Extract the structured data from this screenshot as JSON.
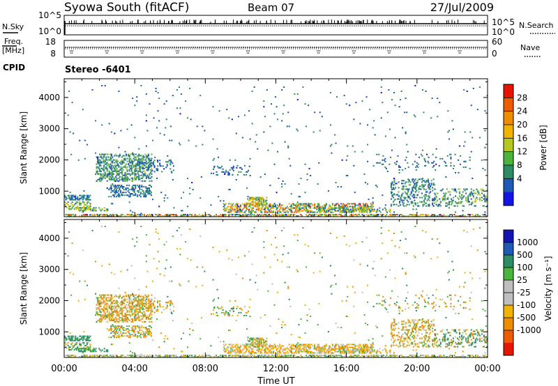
{
  "header": {
    "station": "Syowa South (fitACF)",
    "beam": "Beam 07",
    "date": "27/Jul/2009"
  },
  "top_panels": {
    "nsky_label": "N.Sky",
    "nsearch_label": "N.Search",
    "nsky_ticks": [
      "10^5",
      "10^0"
    ],
    "nsearch_ticks": [
      "10^5",
      "10^0"
    ],
    "freq_label_1": "Freq.",
    "freq_label_2": "[MHz]",
    "freq_ticks": [
      "18",
      "8"
    ],
    "nave_label": "Nave",
    "nave_ticks": [
      "60",
      "0"
    ],
    "cpid_label": "CPID",
    "cpid_value": "Stereo -6401"
  },
  "colors": {
    "power": [
      "#1414e6",
      "#1e5ab4",
      "#2d8c64",
      "#4bb43c",
      "#b4c81e",
      "#f0b400",
      "#f08c00",
      "#f05a00",
      "#e61400"
    ],
    "velocity": [
      "#e61400",
      "#f05a00",
      "#f08c00",
      "#f0b400",
      "#bebebe",
      "#bebebe",
      "#4bb43c",
      "#2d8c64",
      "#1e5ab4",
      "#1414b4"
    ]
  },
  "chart_data": [
    {
      "type": "heatmap",
      "name": "power",
      "ylabel": "Slant Range [km]",
      "xlabel": "",
      "y_ticks": [
        "1000",
        "2000",
        "3000",
        "4000"
      ],
      "x_range_hours": [
        0,
        24
      ],
      "y_range_km": [
        180,
        4600
      ],
      "colorbar_label": "Power [dB]",
      "colorbar_ticks": [
        "4",
        "8",
        "12",
        "16",
        "20",
        "24",
        "28"
      ],
      "colorbar_range": [
        0,
        30
      ]
    },
    {
      "type": "heatmap",
      "name": "velocity",
      "ylabel": "Slant Range [km]",
      "xlabel": "Time UT",
      "x_ticks": [
        "00:00",
        "04:00",
        "08:00",
        "12:00",
        "16:00",
        "20:00",
        "00:00"
      ],
      "y_ticks": [
        "1000",
        "2000",
        "3000",
        "4000"
      ],
      "x_range_hours": [
        0,
        24
      ],
      "y_range_km": [
        180,
        4600
      ],
      "colorbar_label": "Velocity [m s⁻¹]",
      "colorbar_ticks": [
        "1000",
        "500",
        "100",
        "25",
        "-25",
        "-100",
        "-500",
        "-1000"
      ]
    }
  ],
  "echo_regions": [
    {
      "t": [
        0.0,
        1.5
      ],
      "r": [
        700,
        900
      ],
      "d": 0.6,
      "p": [
        4,
        10
      ],
      "v": [
        80,
        400
      ]
    },
    {
      "t": [
        0.0,
        1.5
      ],
      "r": [
        400,
        650
      ],
      "d": 0.4,
      "p": [
        8,
        20
      ],
      "v": [
        -100,
        200
      ]
    },
    {
      "t": [
        0.8,
        2.5
      ],
      "r": [
        350,
        500
      ],
      "d": 0.5,
      "p": [
        5,
        20
      ],
      "v": [
        50,
        300
      ]
    },
    {
      "t": [
        1.8,
        5.0
      ],
      "r": [
        1300,
        2200
      ],
      "d": 0.45,
      "p": [
        3,
        14
      ],
      "v": [
        -450,
        120
      ]
    },
    {
      "t": [
        2.5,
        5.0
      ],
      "r": [
        800,
        1200
      ],
      "d": 0.35,
      "p": [
        3,
        10
      ],
      "v": [
        -350,
        150
      ]
    },
    {
      "t": [
        4.0,
        6.2
      ],
      "r": [
        1600,
        2000
      ],
      "d": 0.2,
      "p": [
        3,
        9
      ],
      "v": [
        -200,
        120
      ]
    },
    {
      "t": [
        8.3,
        10.5
      ],
      "r": [
        1500,
        1800
      ],
      "d": 0.15,
      "p": [
        3,
        8
      ],
      "v": [
        -150,
        300
      ]
    },
    {
      "t": [
        9.0,
        17.5
      ],
      "r": [
        300,
        600
      ],
      "d": 0.45,
      "p": [
        3,
        28
      ],
      "v": [
        -200,
        40
      ]
    },
    {
      "t": [
        10.3,
        11.5
      ],
      "r": [
        500,
        800
      ],
      "d": 0.5,
      "p": [
        8,
        24
      ],
      "v": [
        -150,
        150
      ]
    },
    {
      "t": [
        14.0,
        18.5
      ],
      "r": [
        300,
        500
      ],
      "d": 0.3,
      "p": [
        4,
        20
      ],
      "v": [
        -150,
        100
      ]
    },
    {
      "t": [
        18.5,
        21.0
      ],
      "r": [
        500,
        1400
      ],
      "d": 0.3,
      "p": [
        3,
        12
      ],
      "v": [
        -350,
        100
      ]
    },
    {
      "t": [
        21.0,
        24.0
      ],
      "r": [
        500,
        1100
      ],
      "d": 0.25,
      "p": [
        3,
        16
      ],
      "v": [
        -250,
        500
      ]
    },
    {
      "t": [
        17.5,
        23.0
      ],
      "r": [
        1700,
        2200
      ],
      "d": 0.08,
      "p": [
        3,
        9
      ],
      "v": [
        -200,
        200
      ]
    },
    {
      "t": [
        0.0,
        24.0
      ],
      "r": [
        180,
        260
      ],
      "d": 0.5,
      "p": [
        3,
        28
      ],
      "v": [
        -80,
        80
      ]
    },
    {
      "t": [
        0.0,
        24.0
      ],
      "r": [
        260,
        4400
      ],
      "d": 0.012,
      "p": [
        3,
        10
      ],
      "v": [
        -150,
        150
      ]
    }
  ]
}
